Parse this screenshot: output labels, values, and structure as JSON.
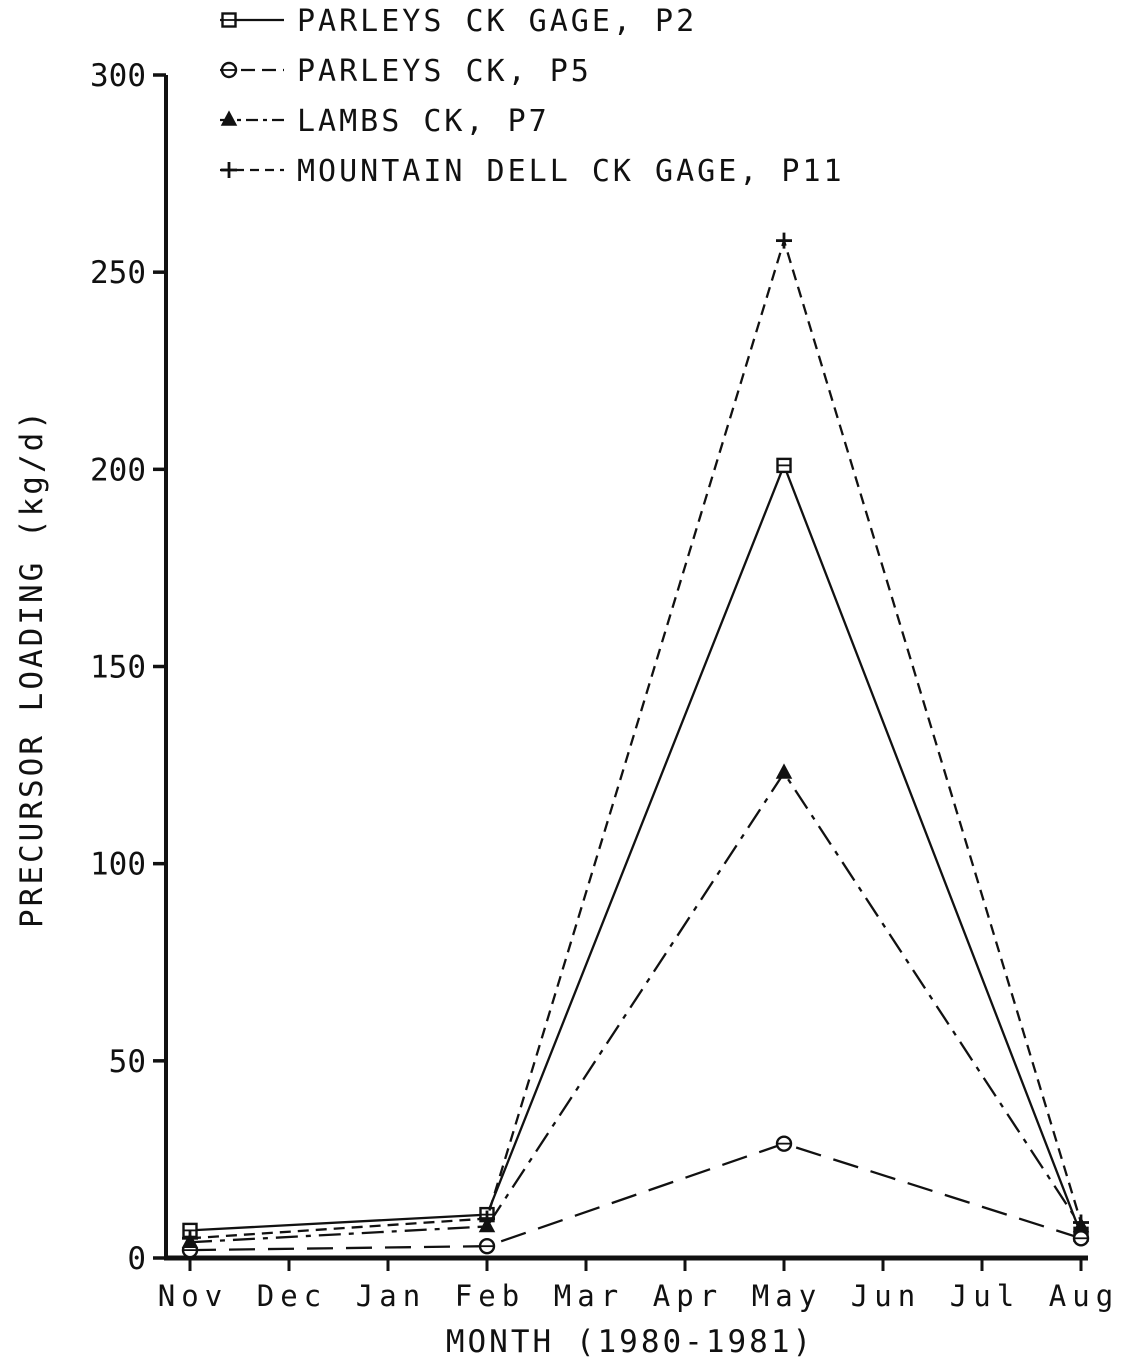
{
  "chart_data": {
    "type": "line",
    "title": "",
    "xlabel": "MONTH (1980-1981)",
    "ylabel": "PRECURSOR LOADING (kg/d)",
    "categories": [
      "Nov",
      "Dec",
      "Jan",
      "Feb",
      "Mar",
      "Apr",
      "May",
      "Jun",
      "Jul",
      "Aug"
    ],
    "ylim": [
      0,
      300
    ],
    "yticks": [
      "0",
      "50",
      "100",
      "150",
      "200",
      "250",
      "300"
    ],
    "legend_position": "top-left",
    "grid": false,
    "series": [
      {
        "name": "PARLEYS CK GAGE, P2",
        "marker": "square",
        "line_style": "solid",
        "x": [
          "Nov",
          "Feb",
          "May",
          "Aug"
        ],
        "values": [
          7,
          11,
          201,
          6
        ]
      },
      {
        "name": "PARLEYS CK, P5",
        "marker": "circle",
        "line_style": "long-dash",
        "x": [
          "Nov",
          "Feb",
          "May",
          "Aug"
        ],
        "values": [
          2,
          3,
          29,
          5
        ]
      },
      {
        "name": "LAMBS CK, P7",
        "marker": "triangle",
        "line_style": "dash-dot",
        "x": [
          "Nov",
          "Feb",
          "May",
          "Aug"
        ],
        "values": [
          4,
          8,
          123,
          8
        ]
      },
      {
        "name": "MOUNTAIN DELL CK GAGE, P11",
        "marker": "plus",
        "line_style": "short-dash",
        "x": [
          "Nov",
          "Feb",
          "May",
          "Aug"
        ],
        "values": [
          5,
          10,
          258,
          9
        ]
      }
    ]
  }
}
